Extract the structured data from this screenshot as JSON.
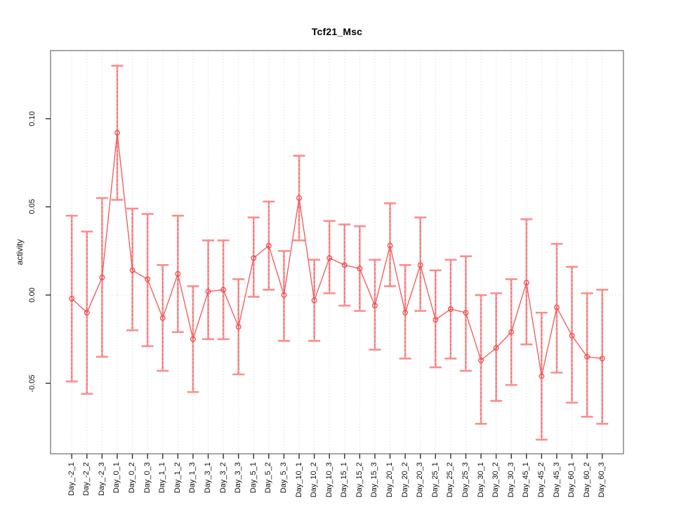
{
  "chart_data": {
    "type": "line",
    "title": "Tcf21_Msc",
    "xlabel": "",
    "ylabel": "activity",
    "legend_position": "none",
    "grid": "dotted vertical gridline at each category; dotted horizontal line at y=0",
    "marker": "open-circle",
    "error_bars": true,
    "categories": [
      "Day_-2_1",
      "Day_-2_2",
      "Day_-2_3",
      "Day_0_1",
      "Day_0_2",
      "Day_0_3",
      "Day_1_1",
      "Day_1_2",
      "Day_1_3",
      "Day_3_1",
      "Day_3_2",
      "Day_3_3",
      "Day_5_1",
      "Day_5_2",
      "Day_5_3",
      "Day_10_1",
      "Day_10_2",
      "Day_10_3",
      "Day_15_1",
      "Day_15_2",
      "Day_15_3",
      "Day_20_1",
      "Day_20_2",
      "Day_20_3",
      "Day_25_1",
      "Day_25_2",
      "Day_25_3",
      "Day_30_1",
      "Day_30_2",
      "Day_30_3",
      "Day_45_1",
      "Day_45_2",
      "Day_45_3",
      "Day_60_1",
      "Day_60_2",
      "Day_60_3"
    ],
    "series": [
      {
        "name": "activity",
        "values": [
          -0.002,
          -0.01,
          0.01,
          0.092,
          0.014,
          0.009,
          -0.013,
          0.012,
          -0.025,
          0.002,
          0.003,
          -0.018,
          0.021,
          0.028,
          0.0,
          0.055,
          -0.003,
          0.021,
          0.017,
          0.015,
          -0.006,
          0.028,
          -0.01,
          0.017,
          -0.014,
          -0.008,
          -0.01,
          -0.037,
          -0.03,
          -0.021,
          0.007,
          -0.046,
          -0.007,
          -0.023,
          -0.035,
          -0.036
        ],
        "error_high": [
          0.045,
          0.036,
          0.055,
          0.13,
          0.049,
          0.046,
          0.017,
          0.045,
          0.005,
          0.031,
          0.031,
          0.009,
          0.044,
          0.053,
          0.025,
          0.079,
          0.02,
          0.042,
          0.04,
          0.039,
          0.02,
          0.052,
          0.017,
          0.044,
          0.014,
          0.02,
          0.022,
          0.0,
          0.001,
          0.009,
          0.043,
          -0.01,
          0.029,
          0.016,
          0.001,
          0.003
        ],
        "error_low": [
          -0.049,
          -0.056,
          -0.035,
          0.054,
          -0.02,
          -0.029,
          -0.043,
          -0.021,
          -0.055,
          -0.025,
          -0.025,
          -0.045,
          -0.001,
          0.003,
          -0.026,
          0.031,
          -0.026,
          0.001,
          -0.006,
          -0.009,
          -0.031,
          0.005,
          -0.036,
          -0.009,
          -0.041,
          -0.036,
          -0.043,
          -0.073,
          -0.06,
          -0.051,
          -0.028,
          -0.082,
          -0.044,
          -0.061,
          -0.069,
          -0.073
        ]
      }
    ],
    "yticks": [
      0.1,
      0.05,
      0.0,
      -0.05
    ],
    "ytick_labels": [
      "0.10",
      "0.05",
      "0.00",
      "-0.05"
    ],
    "ylim": [
      -0.09,
      0.1386
    ],
    "colors": {
      "series_line": "#F25555",
      "point_stroke": "#EF4A4A",
      "error_bar": "#FA9898",
      "error_bar_dash": "#ED5A5A",
      "error_cap": "#F98E8E",
      "gridline": "#D6D6D6",
      "frame": "#8A8A8A",
      "tick": "#2E2E2E",
      "text": "#111111"
    }
  }
}
